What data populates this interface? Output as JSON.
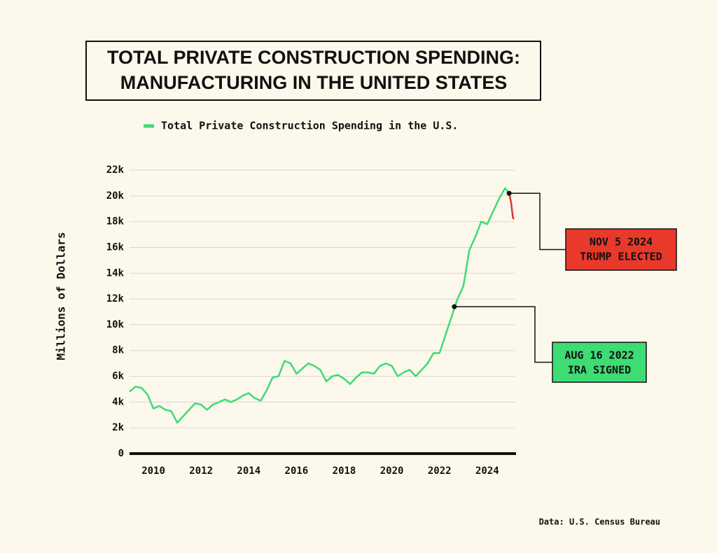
{
  "chart_data": {
    "type": "line",
    "title": [
      "TOTAL PRIVATE CONSTRUCTION SPENDING:",
      "MANUFACTURING IN THE UNITED STATES"
    ],
    "y_label": "Millions of Dollars",
    "source": "Data: U.S. Census Bureau",
    "xlim": [
      2009,
      2025.15
    ],
    "xticks": [
      2010,
      2012,
      2014,
      2016,
      2018,
      2020,
      2022,
      2024
    ],
    "ylim": [
      0,
      22000
    ],
    "yticks": [
      0,
      {
        "value": 2000,
        "label": "2k"
      },
      {
        "value": 4000,
        "label": "4k"
      },
      {
        "value": 6000,
        "label": "6k"
      },
      {
        "value": 8000,
        "label": "8k"
      },
      {
        "value": 10000,
        "label": "10k"
      },
      {
        "value": 12000,
        "label": "12k"
      },
      {
        "value": 14000,
        "label": "14k"
      },
      {
        "value": 16000,
        "label": "16k"
      },
      {
        "value": 18000,
        "label": "18k"
      },
      {
        "value": 20000,
        "label": "20k"
      },
      {
        "value": 22000,
        "label": "22k"
      }
    ],
    "grid": true,
    "legend": "top",
    "series": [
      {
        "name": "Total Private Construction Spending in the U.S.",
        "color": "#3ddc74",
        "x": [
          2009,
          2009.25,
          2009.5,
          2009.75,
          2010,
          2010.25,
          2010.5,
          2010.75,
          2011,
          2011.25,
          2011.5,
          2011.75,
          2012,
          2012.25,
          2012.5,
          2012.75,
          2013,
          2013.25,
          2013.5,
          2013.75,
          2014,
          2014.25,
          2014.5,
          2014.75,
          2015,
          2015.25,
          2015.5,
          2015.75,
          2016,
          2016.25,
          2016.5,
          2016.75,
          2017,
          2017.25,
          2017.5,
          2017.75,
          2018,
          2018.25,
          2018.5,
          2018.75,
          2019,
          2019.25,
          2019.5,
          2019.75,
          2020,
          2020.25,
          2020.5,
          2020.75,
          2021,
          2021.25,
          2021.5,
          2021.75,
          2022,
          2022.25,
          2022.5,
          2022.75,
          2023,
          2023.25,
          2023.5,
          2023.75,
          2024,
          2024.25,
          2024.5,
          2024.75,
          2024.92
        ],
        "values": [
          4800,
          5200,
          5100,
          4600,
          3500,
          3700,
          3400,
          3300,
          2400,
          2900,
          3400,
          3900,
          3800,
          3400,
          3800,
          4000,
          4200,
          4000,
          4200,
          4500,
          4700,
          4300,
          4100,
          4900,
          5900,
          6000,
          7200,
          7000,
          6200,
          6600,
          7000,
          6800,
          6500,
          5600,
          6000,
          6100,
          5800,
          5400,
          5900,
          6300,
          6300,
          6200,
          6800,
          7000,
          6800,
          6000,
          6300,
          6500,
          6000,
          6500,
          7000,
          7800,
          7800,
          9200,
          10600,
          12000,
          13000,
          15800,
          16800,
          18000,
          17800,
          18800,
          19800,
          20600,
          20200
        ]
      },
      {
        "color": "#d8392b",
        "x": [
          2024.92,
          2025,
          2025.08,
          2025.12
        ],
        "values": [
          20200,
          19500,
          18300,
          18200
        ]
      }
    ],
    "annotations": [
      {
        "label": [
          "NOV 5 2024",
          "TRUMP ELECTED"
        ],
        "x": 2024.92,
        "y": 20200,
        "color": "#e8392b"
      },
      {
        "label": [
          "AUG 16 2022",
          "IRA SIGNED"
        ],
        "x": 2022.62,
        "y": 11400,
        "color": "#3ddc74"
      }
    ]
  }
}
